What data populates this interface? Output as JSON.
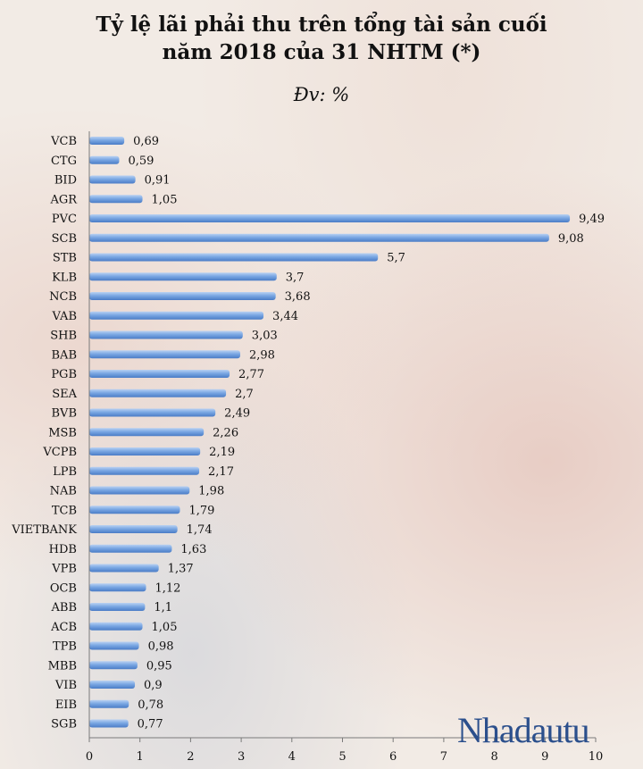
{
  "chart_data": {
    "type": "bar",
    "orientation": "horizontal",
    "title_line1": "Tỷ lệ lãi phải thu trên tổng tài sản cuối",
    "title_line2": "năm 2018 của 31 NHTM (*)",
    "unit": "Đv: %",
    "categories": [
      "VCB",
      "CTG",
      "BID",
      "AGR",
      "PVC",
      "SCB",
      "STB",
      "KLB",
      "NCB",
      "VAB",
      "SHB",
      "BAB",
      "PGB",
      "SEA",
      "BVB",
      "MSB",
      "VCPB",
      "LPB",
      "NAB",
      "TCB",
      "VIETBANK",
      "HDB",
      "VPB",
      "OCB",
      "ABB",
      "ACB",
      "TPB",
      "MBB",
      "VIB",
      "EIB",
      "SGB"
    ],
    "values": [
      0.69,
      0.59,
      0.91,
      1.05,
      9.49,
      9.08,
      5.7,
      3.7,
      3.68,
      3.44,
      3.03,
      2.98,
      2.77,
      2.7,
      2.49,
      2.26,
      2.19,
      2.17,
      1.98,
      1.79,
      1.74,
      1.63,
      1.37,
      1.12,
      1.1,
      1.05,
      0.98,
      0.95,
      0.9,
      0.78,
      0.77
    ],
    "value_labels": [
      "0,69",
      "0,59",
      "0,91",
      "1,05",
      "9,49",
      "9,08",
      "5,7",
      "3,7",
      "3,68",
      "3,44",
      "3,03",
      "2,98",
      "2,77",
      "2,7",
      "2,49",
      "2,26",
      "2,19",
      "2,17",
      "1,98",
      "1,79",
      "1,74",
      "1,63",
      "1,37",
      "1,12",
      "1,1",
      "1,05",
      "0,98",
      "0,95",
      "0,9",
      "0,78",
      "0,77"
    ],
    "xlim": [
      0,
      10
    ],
    "xticks": [
      "0",
      "1",
      "2",
      "3",
      "4",
      "5",
      "6",
      "7",
      "8",
      "9",
      "10"
    ],
    "grid": false,
    "bar_color": "#6f9fe0"
  },
  "brand": {
    "logo_text": "Nhadautu"
  }
}
